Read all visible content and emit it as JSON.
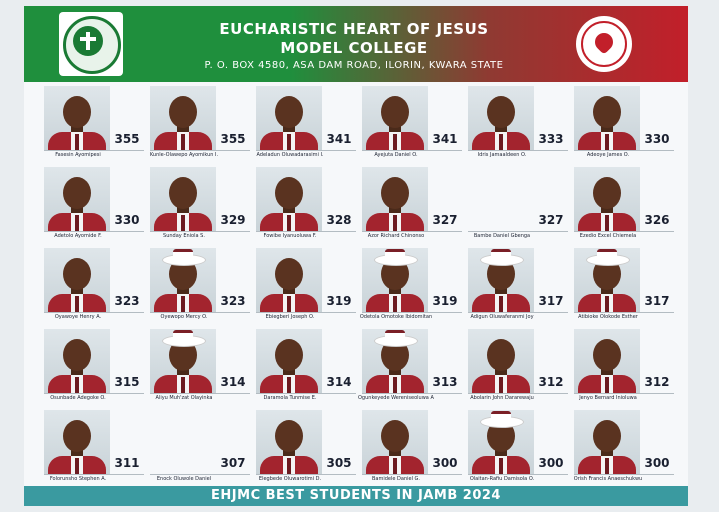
{
  "header": {
    "title_line1": "EUCHARISTIC HEART OF JESUS",
    "title_line2": "MODEL COLLEGE",
    "address": "P. O. BOX 4580, ASA DAM ROAD, ILORIN, KWARA STATE"
  },
  "colors": {
    "header_green": "#1f8f3d",
    "header_red": "#c21f2a",
    "footer_teal": "#3a9aa0",
    "uniform_red": "#a3242e"
  },
  "icons": {
    "left_logo": "school-crest-icon",
    "right_logo": "heart-seal-icon"
  },
  "students": [
    {
      "name": "Fasesin Ayomipesi",
      "score": "355",
      "hat": false,
      "photo": true
    },
    {
      "name": "Kunle-Olawepo Ayomikun I.",
      "score": "355",
      "hat": false,
      "photo": true
    },
    {
      "name": "Adeladun Oluwadarasimi I.",
      "score": "341",
      "hat": false,
      "photo": true
    },
    {
      "name": "Ayejuta Daniel O.",
      "score": "341",
      "hat": false,
      "photo": true
    },
    {
      "name": "Idris Jamaaldeen O.",
      "score": "333",
      "hat": false,
      "photo": true
    },
    {
      "name": "Adeoye James O.",
      "score": "330",
      "hat": false,
      "photo": true
    },
    {
      "name": "Adetolo Ayomide F.",
      "score": "330",
      "hat": false,
      "photo": true
    },
    {
      "name": "Sunday Eniola S.",
      "score": "329",
      "hat": false,
      "photo": true
    },
    {
      "name": "Fowibe Iyanuoluwa F.",
      "score": "328",
      "hat": false,
      "photo": true
    },
    {
      "name": "Azor Richard Chinonso",
      "score": "327",
      "hat": false,
      "photo": true
    },
    {
      "name": "Bambe Daniel Gbenga",
      "score": "327",
      "hat": false,
      "photo": false
    },
    {
      "name": "Ezedio Excel Chiemela",
      "score": "326",
      "hat": false,
      "photo": true
    },
    {
      "name": "Oyawoye Henry A.",
      "score": "323",
      "hat": false,
      "photo": true
    },
    {
      "name": "Oyewopo Mercy O.",
      "score": "323",
      "hat": true,
      "photo": true
    },
    {
      "name": "Ebiegberi Joseph O.",
      "score": "319",
      "hat": false,
      "photo": true
    },
    {
      "name": "Odetola Omotoke Ibidomitan",
      "score": "319",
      "hat": true,
      "photo": true
    },
    {
      "name": "Adigun Oluwaferanmi Joy",
      "score": "317",
      "hat": true,
      "photo": true
    },
    {
      "name": "Atibioke Olokode Esther",
      "score": "317",
      "hat": true,
      "photo": true
    },
    {
      "name": "Osunbade Adegoke O.",
      "score": "315",
      "hat": false,
      "photo": true
    },
    {
      "name": "Aliyu Muh'zat Olayinka",
      "score": "314",
      "hat": true,
      "photo": true
    },
    {
      "name": "Daramola Tunmise E.",
      "score": "314",
      "hat": false,
      "photo": true
    },
    {
      "name": "Ogunkeyede Wereniseoluwa A.",
      "score": "313",
      "hat": true,
      "photo": true
    },
    {
      "name": "Abolarin John Dararewaju",
      "score": "312",
      "hat": false,
      "photo": true
    },
    {
      "name": "Jenyo Bernard Inioluwa",
      "score": "312",
      "hat": false,
      "photo": true
    },
    {
      "name": "Folorunsho Stephen A.",
      "score": "311",
      "hat": false,
      "photo": true
    },
    {
      "name": "Enock Oluwole Daniel",
      "score": "307",
      "hat": false,
      "photo": false
    },
    {
      "name": "Elegbede Oluwarotimi D.",
      "score": "305",
      "hat": false,
      "photo": true
    },
    {
      "name": "Bamidele Daniel G.",
      "score": "300",
      "hat": false,
      "photo": true
    },
    {
      "name": "Olaitan-Rafiu Damisola O.",
      "score": "300",
      "hat": true,
      "photo": true
    },
    {
      "name": "Orish Francis Anaeschukwu",
      "score": "300",
      "hat": false,
      "photo": true
    }
  ],
  "footer": {
    "text": "EHJMC BEST STUDENTS IN JAMB 2024"
  }
}
